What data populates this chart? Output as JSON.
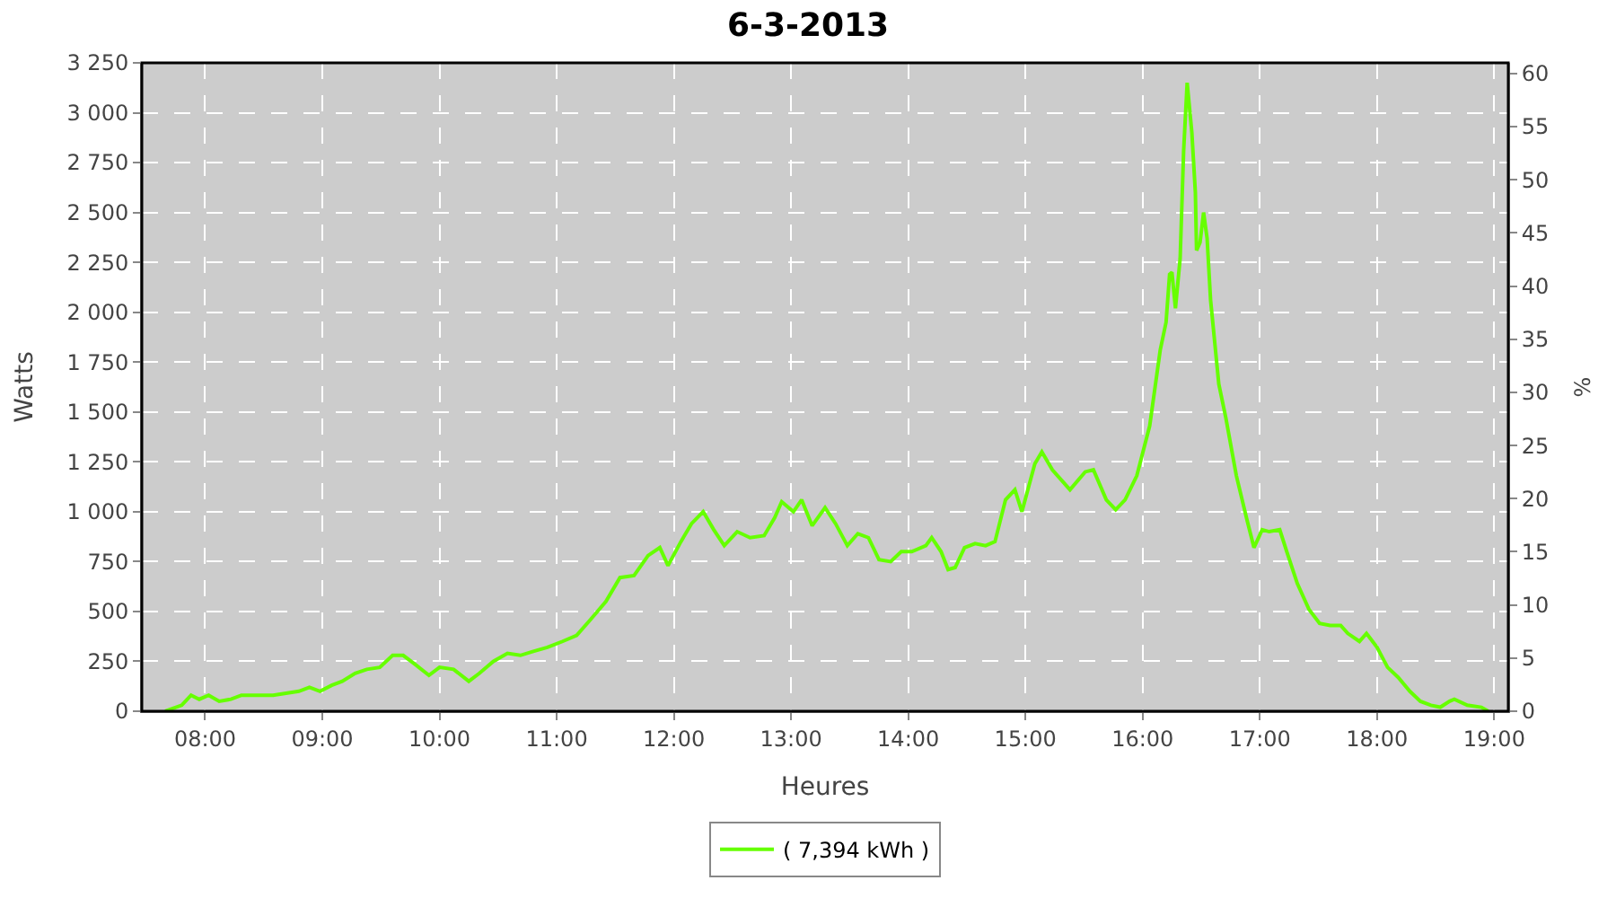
{
  "chart_data": {
    "type": "line",
    "title": "6-3-2013",
    "xlabel": "Heures",
    "ylabel": "Watts",
    "y2label": "%",
    "x": [
      7.66,
      7.8,
      7.88,
      7.95,
      8.03,
      8.12,
      8.22,
      8.31,
      8.46,
      8.58,
      8.69,
      8.8,
      8.89,
      8.98,
      9.08,
      9.17,
      9.28,
      9.38,
      9.49,
      9.6,
      9.69,
      9.78,
      9.91,
      10.0,
      10.12,
      10.25,
      10.34,
      10.46,
      10.58,
      10.69,
      10.8,
      10.92,
      11.05,
      11.17,
      11.29,
      11.42,
      11.54,
      11.66,
      11.78,
      11.88,
      11.95,
      12.06,
      12.15,
      12.25,
      12.34,
      12.43,
      12.54,
      12.65,
      12.77,
      12.86,
      12.92,
      13.02,
      13.09,
      13.18,
      13.29,
      13.38,
      13.48,
      13.57,
      13.66,
      13.75,
      13.85,
      13.94,
      14.03,
      14.15,
      14.2,
      14.28,
      14.34,
      14.4,
      14.48,
      14.57,
      14.66,
      14.74,
      14.83,
      14.91,
      14.97,
      15.08,
      15.14,
      15.23,
      15.38,
      15.51,
      15.58,
      15.69,
      15.77,
      15.85,
      15.95,
      16.06,
      16.15,
      16.2,
      16.23,
      16.25,
      16.28,
      16.32,
      16.35,
      16.38,
      16.42,
      16.45,
      16.46,
      16.49,
      16.52,
      16.55,
      16.58,
      16.65,
      16.71,
      16.8,
      16.89,
      16.95,
      17.02,
      17.08,
      17.17,
      17.23,
      17.32,
      17.42,
      17.51,
      17.6,
      17.69,
      17.75,
      17.85,
      17.91,
      18.0,
      18.09,
      18.18,
      18.28,
      18.37,
      18.46,
      18.54,
      18.62,
      18.66,
      18.77,
      18.89,
      18.95
    ],
    "series": [
      {
        "name": "( 7,394 kWh )",
        "color": "#66ff00",
        "values": [
          0,
          30,
          80,
          60,
          80,
          50,
          60,
          80,
          80,
          80,
          90,
          100,
          120,
          100,
          130,
          150,
          190,
          210,
          220,
          280,
          280,
          240,
          180,
          220,
          210,
          150,
          190,
          250,
          290,
          280,
          300,
          320,
          350,
          380,
          460,
          550,
          670,
          680,
          780,
          820,
          730,
          850,
          940,
          1000,
          910,
          830,
          900,
          870,
          880,
          970,
          1050,
          1000,
          1060,
          930,
          1020,
          940,
          830,
          890,
          870,
          760,
          750,
          800,
          800,
          830,
          870,
          800,
          710,
          720,
          820,
          840,
          830,
          850,
          1060,
          1110,
          1000,
          1240,
          1300,
          1210,
          1110,
          1200,
          1210,
          1060,
          1010,
          1060,
          1180,
          1430,
          1810,
          1950,
          2190,
          2200,
          2020,
          2270,
          2810,
          3150,
          2900,
          2600,
          2310,
          2350,
          2500,
          2370,
          2060,
          1640,
          1470,
          1180,
          960,
          820,
          910,
          900,
          910,
          800,
          640,
          510,
          440,
          430,
          430,
          390,
          350,
          390,
          320,
          220,
          170,
          100,
          50,
          30,
          20,
          50,
          60,
          30,
          20,
          0
        ]
      }
    ],
    "xlim": [
      7.46,
      19.12
    ],
    "xticks": [
      {
        "value": 8,
        "label": "08:00"
      },
      {
        "value": 9,
        "label": "09:00"
      },
      {
        "value": 10,
        "label": "10:00"
      },
      {
        "value": 11,
        "label": "11:00"
      },
      {
        "value": 12,
        "label": "12:00"
      },
      {
        "value": 13,
        "label": "13:00"
      },
      {
        "value": 14,
        "label": "14:00"
      },
      {
        "value": 15,
        "label": "15:00"
      },
      {
        "value": 16,
        "label": "16:00"
      },
      {
        "value": 17,
        "label": "17:00"
      },
      {
        "value": 18,
        "label": "18:00"
      },
      {
        "value": 19,
        "label": "19:00"
      }
    ],
    "ylim": [
      0,
      3250
    ],
    "yticks": [
      0,
      250,
      500,
      750,
      {
        "value": 1000,
        "label": "1 000"
      },
      {
        "value": 1250,
        "label": "1 250"
      },
      {
        "value": 1500,
        "label": "1 500"
      },
      {
        "value": 1750,
        "label": "1 750"
      },
      {
        "value": 2000,
        "label": "2 000"
      },
      {
        "value": 2250,
        "label": "2 250"
      },
      {
        "value": 2500,
        "label": "2 500"
      },
      {
        "value": 2750,
        "label": "2 750"
      },
      {
        "value": 3000,
        "label": "3 000"
      },
      {
        "value": 3250,
        "label": "3 250"
      }
    ],
    "y2lim": [
      0,
      61
    ],
    "y2ticks": [
      0,
      5,
      10,
      15,
      20,
      25,
      30,
      35,
      40,
      45,
      50,
      55,
      60
    ],
    "grid": true,
    "legend": "bottom",
    "marker": "none",
    "line_style": "solid"
  }
}
